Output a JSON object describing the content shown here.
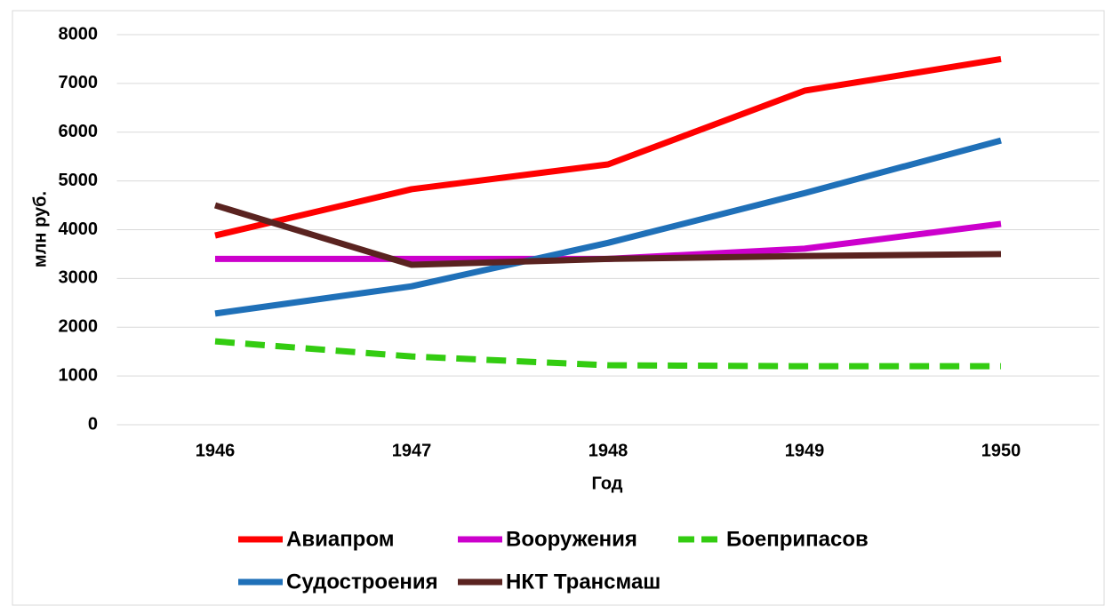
{
  "chart_data": {
    "type": "line",
    "x_label": "Год",
    "y_label": "млн руб.",
    "categories": [
      "1946",
      "1947",
      "1948",
      "1949",
      "1950"
    ],
    "series": [
      {
        "name": "Авиапром",
        "color": "#ff0000",
        "values": [
          3880,
          4830,
          5340,
          6850,
          7500
        ]
      },
      {
        "name": "Вооружения",
        "color": "#cc00cc",
        "values": [
          3400,
          3400,
          3400,
          3610,
          4120
        ]
      },
      {
        "name": "Боеприпасов",
        "color": "#33cc11",
        "dashed": true,
        "values": [
          1710,
          1400,
          1220,
          1200,
          1200
        ]
      },
      {
        "name": "Судостроения",
        "color": "#1f70b8",
        "values": [
          2280,
          2840,
          3730,
          4750,
          5830
        ]
      },
      {
        "name": "НКТ Трансмаш",
        "color": "#5a2320",
        "values": [
          4500,
          3280,
          3400,
          3460,
          3500
        ]
      }
    ],
    "ylim": [
      0,
      8000
    ],
    "yticks": [
      0,
      1000,
      2000,
      3000,
      4000,
      5000,
      6000,
      7000,
      8000
    ],
    "grid": true,
    "legend": "bottom"
  }
}
